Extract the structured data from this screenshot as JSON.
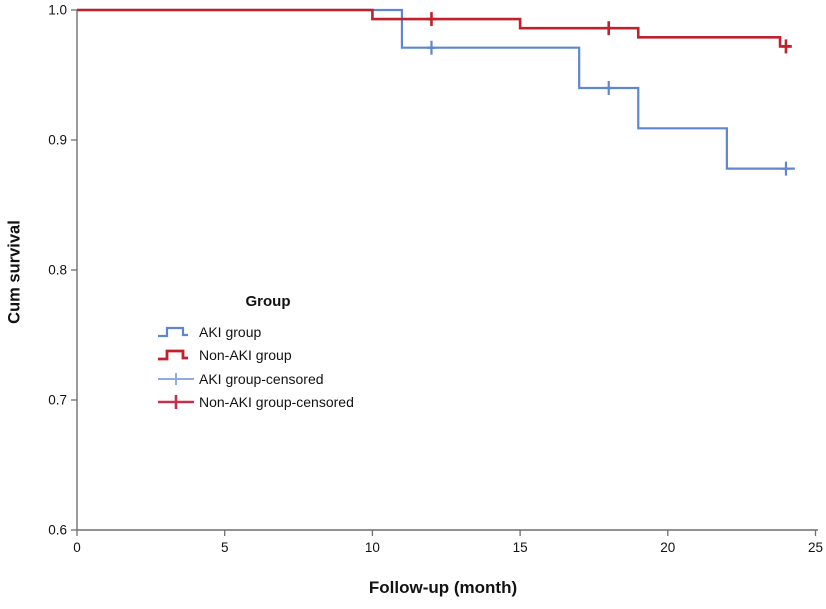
{
  "chart_data": {
    "type": "line",
    "variant": "kaplan_meier_step",
    "title": "",
    "xlabel": "Follow-up (month)",
    "ylabel": "Cum survival",
    "xlim": [
      0,
      25
    ],
    "ylim": [
      0.6,
      1.0
    ],
    "grid": false,
    "axis_color": "#6f6f6f",
    "text_color": "#121212",
    "xticks": {
      "values": [
        0,
        5,
        10,
        15,
        20,
        25
      ],
      "labels": [
        "0",
        "5",
        "10",
        "15",
        "20",
        "25"
      ]
    },
    "yticks": {
      "values": [
        1.0,
        0.9,
        0.8,
        0.7,
        0.6
      ],
      "labels": [
        "1.0",
        "0.9",
        "0.8",
        "0.7",
        "0.6"
      ]
    },
    "legend": {
      "title": "Group",
      "position": "inside-center-left",
      "entries": [
        {
          "label": "AKI group",
          "color": "#5f87ce",
          "symbol": "step"
        },
        {
          "label": "Non-AKI group",
          "color": "#c1202e",
          "symbol": "step"
        },
        {
          "label": "AKI group-censored",
          "color": "#8fabdf",
          "symbol": "plus"
        },
        {
          "label": "Non-AKI group-censored",
          "color": "#c5304a",
          "symbol": "plus"
        }
      ]
    },
    "series": [
      {
        "name": "AKI group",
        "color": "#5f87ce",
        "line_width": 2.2,
        "points": [
          [
            0,
            1.0
          ],
          [
            11,
            1.0
          ],
          [
            11,
            0.971
          ],
          [
            17,
            0.971
          ],
          [
            17,
            0.94
          ],
          [
            19,
            0.94
          ],
          [
            19,
            0.909
          ],
          [
            22,
            0.909
          ],
          [
            22,
            0.878
          ],
          [
            24.3,
            0.878
          ]
        ],
        "censored": [
          [
            12,
            0.971
          ],
          [
            18,
            0.94
          ],
          [
            24,
            0.878
          ]
        ]
      },
      {
        "name": "Non-AKI group",
        "color": "#c1202e",
        "line_width": 2.6,
        "points": [
          [
            0,
            1.0
          ],
          [
            10,
            1.0
          ],
          [
            10,
            0.993
          ],
          [
            15,
            0.993
          ],
          [
            15,
            0.986
          ],
          [
            19,
            0.986
          ],
          [
            19,
            0.979
          ],
          [
            23.8,
            0.979
          ],
          [
            23.8,
            0.972
          ],
          [
            24.2,
            0.972
          ]
        ],
        "censored": [
          [
            12,
            0.993
          ],
          [
            18,
            0.986
          ],
          [
            24,
            0.972
          ]
        ]
      }
    ]
  }
}
